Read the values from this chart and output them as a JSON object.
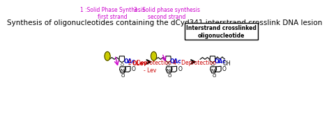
{
  "title": "Synthesis of oligonucleotides containing the dCyd341 interstrand crosslink DNA lesion",
  "title_fontsize": 7.5,
  "title_color": "#000000",
  "bg_color": "#ffffff",
  "step1_label": "1 :Solid Phase Synthesis\nfirst strand",
  "step2_label": "2 : Deprotection\n- Lev",
  "step3_label": "3 : Solid phase synthesis\nsecond strand",
  "step4_label": "4 : Deprotection",
  "final_label": "Interstrand crosslinked\noligonucleotide",
  "label_color_magenta": "#cc00cc",
  "label_color_red": "#cc0000",
  "label_color_blue": "#0000cc",
  "arrow_color": "#000000",
  "arrow_magenta": "#cc00cc",
  "solid_bead_color": "#cccc00",
  "OAc_color": "#0000cc",
  "OLev_color": "#cc0000",
  "OH_color": "#000000"
}
